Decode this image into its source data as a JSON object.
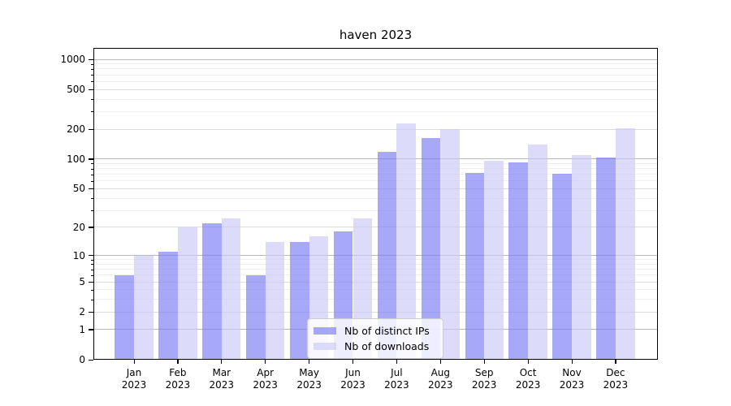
{
  "title": "haven 2023",
  "chart_data": {
    "type": "bar",
    "title": "haven 2023",
    "categories": [
      "Jan 2023",
      "Feb 2023",
      "Mar 2023",
      "Apr 2023",
      "May 2023",
      "Jun 2023",
      "Jul 2023",
      "Aug 2023",
      "Sep 2023",
      "Oct 2023",
      "Nov 2023",
      "Dec 2023"
    ],
    "series": [
      {
        "name": "Nb of distinct IPs",
        "color": "rgba(121,121,244,0.65)",
        "color_hex_on_white": "#a8a8f6",
        "values": [
          6,
          11,
          22,
          6,
          14,
          18,
          118,
          164,
          73,
          92,
          71,
          104
        ]
      },
      {
        "name": "Nb of downloads",
        "color": "rgba(201,201,248,0.65)",
        "color_hex_on_white": "#dcdcf9",
        "values": [
          10,
          20,
          25,
          14,
          16,
          25,
          230,
          200,
          96,
          140,
          110,
          205
        ]
      }
    ],
    "xlabel": "",
    "ylabel": "",
    "y_scale": "log1p",
    "ylim": [
      0,
      1300
    ],
    "y_ticks": [
      0,
      1,
      2,
      5,
      10,
      20,
      50,
      100,
      200,
      500,
      1000
    ],
    "y_minor_ticks": [
      3,
      4,
      6,
      7,
      8,
      9,
      30,
      40,
      60,
      70,
      80,
      90,
      300,
      400,
      600,
      700,
      800,
      900
    ],
    "grid": true,
    "legend_position": "lower center"
  },
  "legend": {
    "items": [
      {
        "label": "Nb of distinct IPs"
      },
      {
        "label": "Nb of downloads"
      }
    ]
  }
}
